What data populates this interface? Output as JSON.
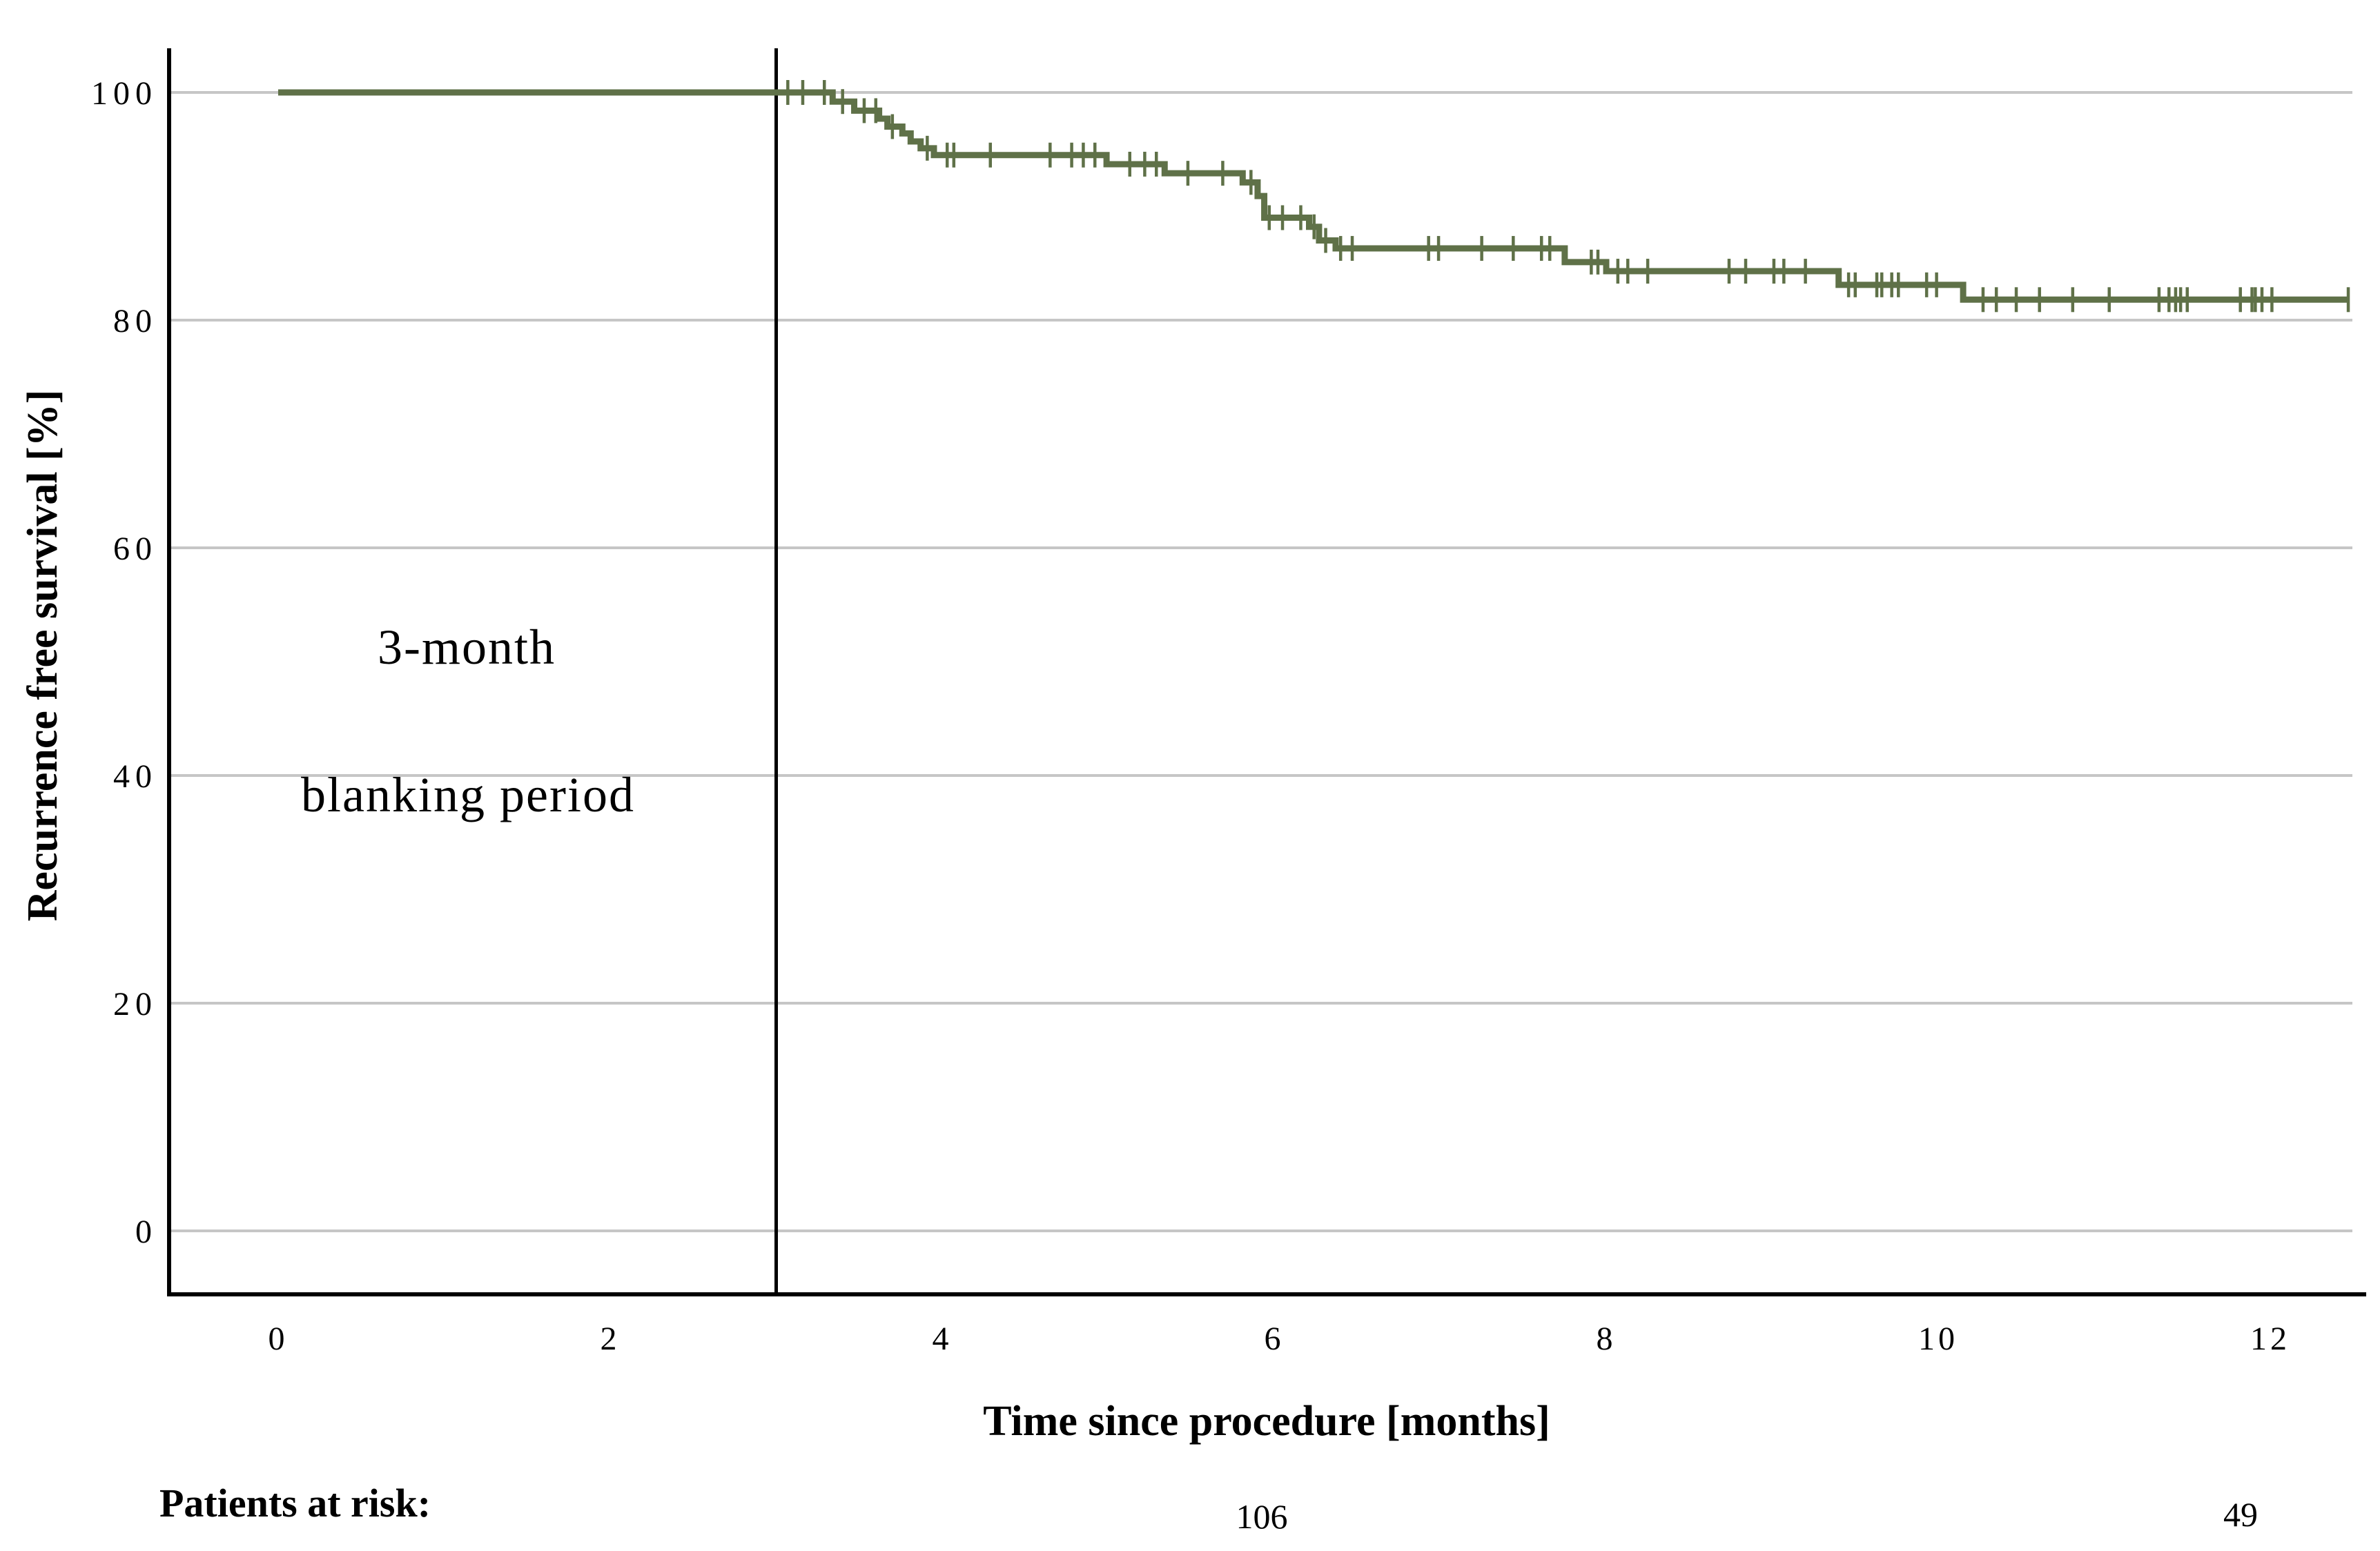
{
  "colors": {
    "curve": "#5f7148",
    "gridline": "#c6c6c6",
    "axis": "#000000",
    "blanking_line": "#000000",
    "background": "#ffffff"
  },
  "chart_data": {
    "type": "line",
    "subtype": "kaplan-meier-step",
    "title": "",
    "xlabel": "Time since procedure [months]",
    "ylabel": "Recurrence free survival [%]",
    "x_ticks": [
      0,
      2,
      4,
      6,
      8,
      10,
      12
    ],
    "y_ticks": [
      0,
      20,
      40,
      60,
      80,
      100
    ],
    "xlim": [
      0,
      12.6
    ],
    "ylim": [
      0,
      100
    ],
    "grid": "horizontal-only",
    "legend": "none",
    "blanking_line_t": 3,
    "annotation": {
      "line1": "3-month",
      "line2": "blanking period"
    },
    "series": [
      {
        "name": "Recurrence free survival",
        "step_points": [
          [
            0,
            100
          ],
          [
            3.34,
            99.2
          ],
          [
            3.47,
            98.4
          ],
          [
            3.62,
            97.7
          ],
          [
            3.67,
            97.0
          ],
          [
            3.76,
            96.4
          ],
          [
            3.81,
            95.7
          ],
          [
            3.87,
            95.1
          ],
          [
            3.95,
            94.5
          ],
          [
            4.99,
            93.7
          ],
          [
            5.34,
            92.9
          ],
          [
            5.81,
            92.1
          ],
          [
            5.9,
            90.9
          ],
          [
            5.94,
            89.0
          ],
          [
            6.21,
            88.2
          ],
          [
            6.27,
            87.0
          ],
          [
            6.37,
            86.3
          ],
          [
            7.75,
            85.1
          ],
          [
            8.0,
            84.3
          ],
          [
            9.4,
            83.1
          ],
          [
            10.15,
            81.8
          ]
        ],
        "end_t": 12.47,
        "censor_times": [
          3.07,
          3.16,
          3.29,
          3.4,
          3.53,
          3.6,
          3.7,
          3.91,
          4.03,
          4.07,
          4.29,
          4.65,
          4.78,
          4.85,
          4.92,
          5.13,
          5.22,
          5.29,
          5.48,
          5.69,
          5.86,
          5.97,
          6.05,
          6.16,
          6.24,
          6.31,
          6.4,
          6.47,
          6.93,
          6.99,
          7.25,
          7.44,
          7.61,
          7.66,
          7.91,
          7.95,
          8.07,
          8.13,
          8.25,
          8.74,
          8.84,
          9.01,
          9.07,
          9.2,
          9.46,
          9.5,
          9.63,
          9.66,
          9.72,
          9.76,
          9.93,
          9.99,
          10.27,
          10.35,
          10.47,
          10.61,
          10.81,
          11.03,
          11.33,
          11.39,
          11.43,
          11.46,
          11.5,
          11.82,
          11.89,
          11.91,
          11.95,
          12.01,
          12.47
        ]
      }
    ],
    "at_risk": {
      "label": "Patients at risk:",
      "entries": [
        {
          "t": 5.93,
          "n": "106"
        },
        {
          "t": 11.82,
          "n": "49"
        }
      ]
    }
  }
}
